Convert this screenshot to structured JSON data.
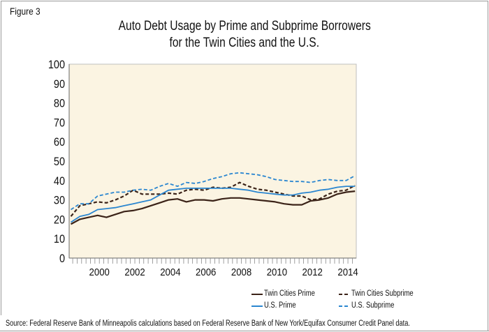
{
  "figure_label": "Figure 3",
  "source": "Source: Federal Reserve Bank of Minneapolis calculations based on Federal Reserve Bank of New York/Equifax Consumer Credit Panel data.",
  "colors": {
    "background": "#fbf4e2",
    "twin_cities": "#3b2318",
    "us": "#2a86d0"
  },
  "chart_data": {
    "type": "line",
    "title": "Auto Debt Usage by Prime and Subprime Borrowers",
    "subtitle": "for the Twin Cities and the U.S.",
    "xlabel": "",
    "ylabel": "",
    "xlim": [
      1998.3,
      2014.47
    ],
    "ylim": [
      0,
      100
    ],
    "yticks": [
      0,
      10,
      20,
      30,
      40,
      50,
      60,
      70,
      80,
      90,
      100
    ],
    "xticks": [
      2000,
      2002,
      2004,
      2006,
      2008,
      2010,
      2012,
      2014
    ],
    "grid": false,
    "legend_position": "bottom-right",
    "x": [
      1998.4,
      1998.9,
      1999.4,
      1999.9,
      2000.4,
      2000.9,
      2001.4,
      2001.9,
      2002.4,
      2002.9,
      2003.4,
      2003.9,
      2004.4,
      2004.9,
      2005.4,
      2005.9,
      2006.4,
      2006.9,
      2007.4,
      2007.9,
      2008.4,
      2008.9,
      2009.4,
      2009.9,
      2010.4,
      2010.9,
      2011.4,
      2011.9,
      2012.4,
      2012.9,
      2013.4,
      2013.9,
      2014.4
    ],
    "series": [
      {
        "name": "Twin Cities Prime",
        "style": "solid",
        "color": "#3b2318",
        "values": [
          17.5,
          20,
          21,
          22,
          21,
          22.5,
          24,
          24.5,
          25.5,
          27,
          28.5,
          30,
          30.5,
          29,
          30,
          30,
          29.5,
          30.5,
          31,
          31,
          30.5,
          30,
          29.5,
          29,
          28,
          27.5,
          27.5,
          29.5,
          30,
          31,
          33,
          34,
          34.5
        ]
      },
      {
        "name": "Twin Cities Subprime",
        "style": "dashed",
        "color": "#3b2318",
        "values": [
          21.5,
          27,
          28,
          29,
          28.5,
          30,
          32,
          35,
          33,
          33,
          33,
          33.5,
          33,
          35,
          35.5,
          35,
          36.5,
          36,
          36.5,
          39,
          37,
          35.5,
          35,
          34,
          33,
          32,
          32,
          30,
          30.5,
          33,
          34.5,
          35,
          37.5
        ]
      },
      {
        "name": "U.S. Prime",
        "style": "solid",
        "color": "#2a86d0",
        "values": [
          18.5,
          21.5,
          22.5,
          25,
          25.5,
          26,
          27,
          28,
          29,
          30,
          32.5,
          35,
          35.5,
          36,
          36,
          36,
          36,
          36,
          36,
          35.5,
          35,
          34,
          33.5,
          33,
          32.5,
          32.5,
          33.5,
          34,
          35,
          35.5,
          36.5,
          37,
          37
        ]
      },
      {
        "name": "U.S. Subprime",
        "style": "dashed",
        "color": "#2a86d0",
        "values": [
          25,
          28,
          28,
          32,
          33,
          34,
          34,
          35,
          35.5,
          35,
          37,
          38.5,
          37,
          39,
          38.5,
          39.5,
          41,
          42,
          43.5,
          44,
          43.5,
          43,
          42,
          40.5,
          40,
          39.5,
          39.5,
          39,
          40,
          40.5,
          40,
          40,
          42.5
        ]
      }
    ]
  }
}
